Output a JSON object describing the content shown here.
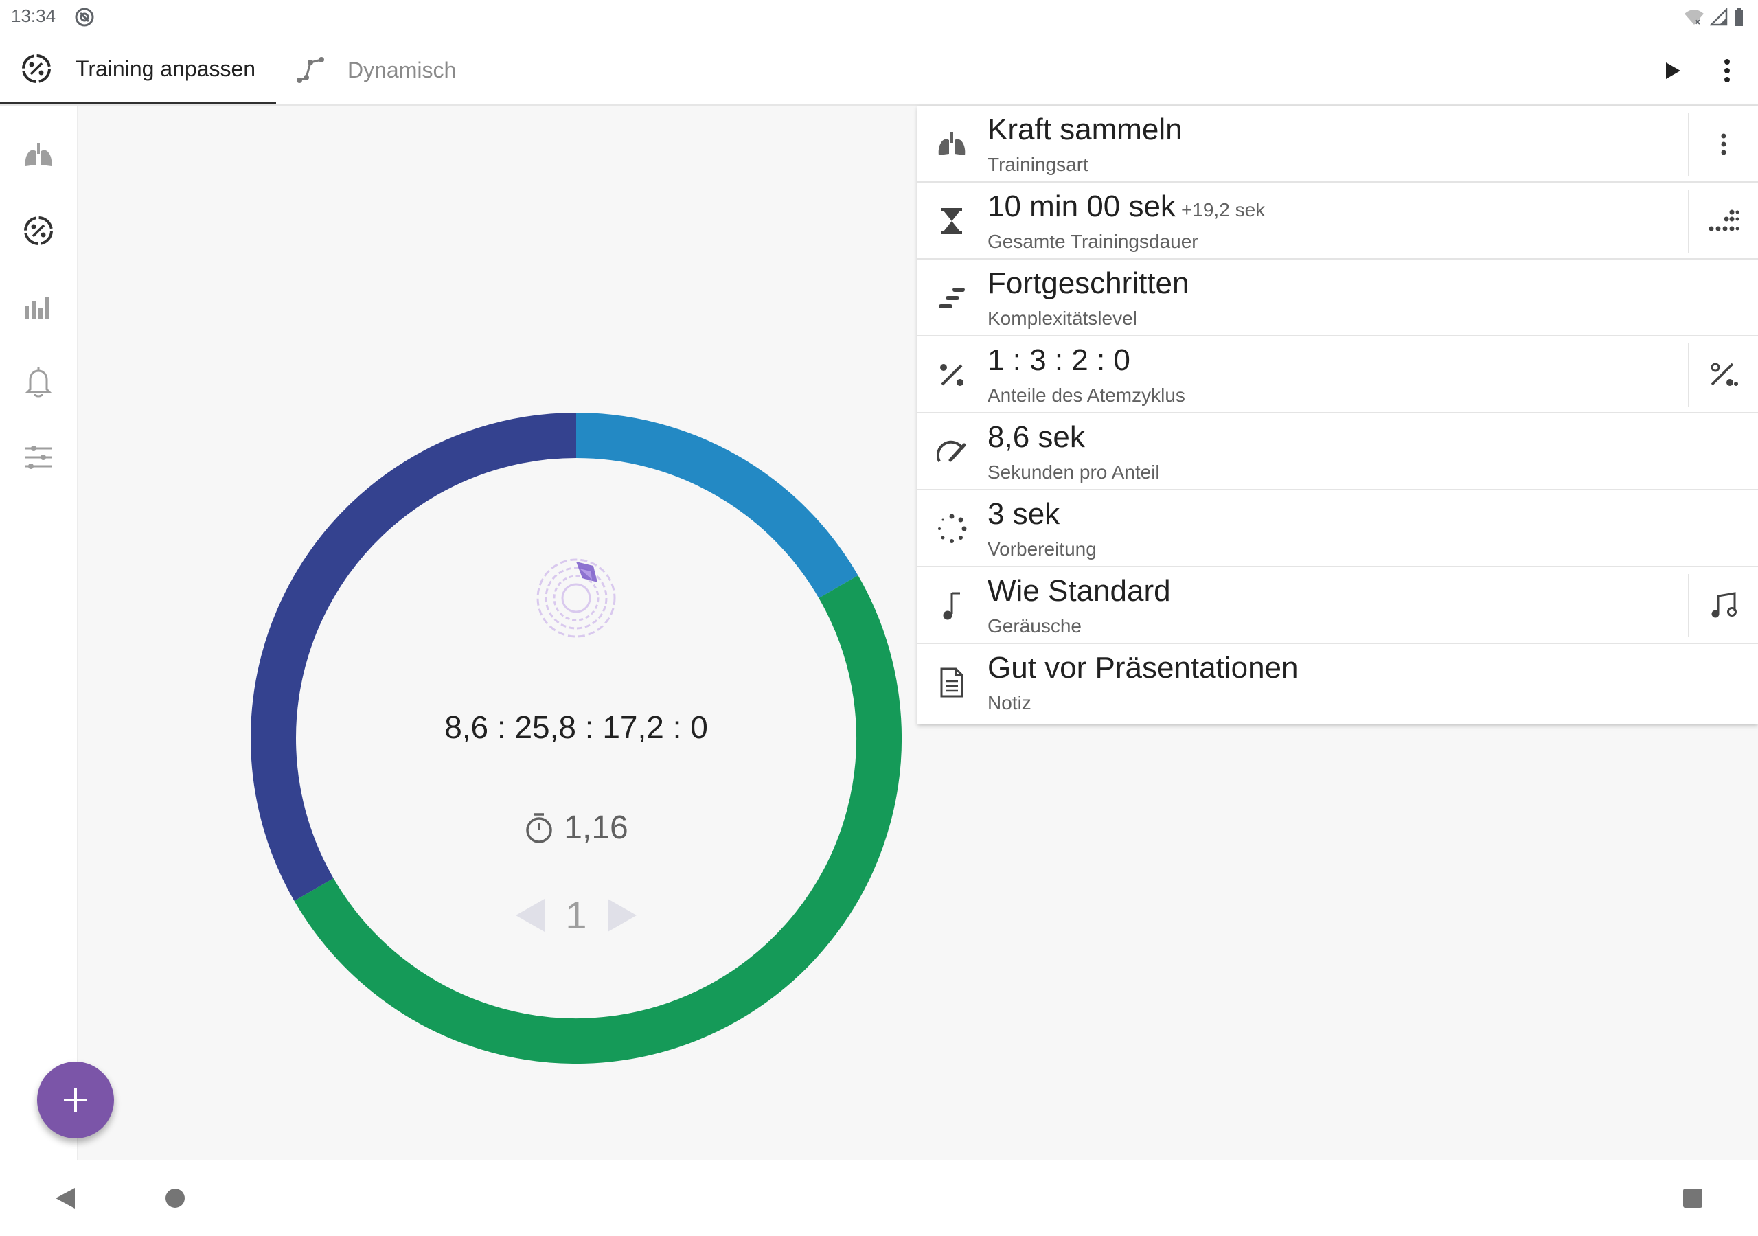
{
  "status_bar": {
    "time": "13:34"
  },
  "tabs": [
    {
      "label": "Training anpassen",
      "icon": "percent-circle-icon",
      "active": true
    },
    {
      "label": "Dynamisch",
      "icon": "graph-points-icon",
      "active": false
    }
  ],
  "toolbar": {
    "play_icon": "play-icon",
    "menu_icon": "more-vert-icon"
  },
  "side_rail": [
    {
      "icon": "lungs-icon"
    },
    {
      "icon": "percent-circle-icon"
    },
    {
      "icon": "bar-chart-icon"
    },
    {
      "icon": "bell-icon"
    },
    {
      "icon": "sliders-icon"
    }
  ],
  "breath_ring": {
    "ratio_text": "8,6 : 25,8 : 17,2 : 0",
    "timer_value": "1,16",
    "cycle_number": "1",
    "segments": [
      {
        "phase": "inhale",
        "seconds": 8.6,
        "color": "#2389c4"
      },
      {
        "phase": "hold",
        "seconds": 25.8,
        "color": "#159a58"
      },
      {
        "phase": "exhale",
        "seconds": 17.2,
        "color": "#34428f"
      },
      {
        "phase": "rest",
        "seconds": 0,
        "color": "#999999"
      }
    ]
  },
  "settings": [
    {
      "title": "Kraft sammeln",
      "subtitle": "Trainingsart",
      "icon": "lungs-icon",
      "action_icon": "more-vert-icon"
    },
    {
      "title": "10 min 00 sek",
      "extra": "+19,2 sek",
      "subtitle": "Gesamte Trainingsdauer",
      "icon": "hourglass-icon",
      "action_icon": "dots-grid-icon"
    },
    {
      "title": "Fortgeschritten",
      "subtitle": "Komplexitätslevel",
      "icon": "stairs-icon"
    },
    {
      "title": "1 : 3 : 2 : 0",
      "subtitle": "Anteile des Atemzyklus",
      "icon": "percent-icon",
      "action_icon": "percent-icon"
    },
    {
      "title": "8,6 sek",
      "subtitle": "Sekunden pro Anteil",
      "icon": "speedometer-icon"
    },
    {
      "title": "3 sek",
      "subtitle": "Vorbereitung",
      "icon": "loading-dots-icon"
    },
    {
      "title": "Wie Standard",
      "subtitle": "Geräusche",
      "icon": "music-note-icon",
      "action_icon": "music-notes-icon"
    },
    {
      "title": "Gut vor Präsentationen",
      "subtitle": "Notiz",
      "icon": "document-icon"
    }
  ],
  "colors": {
    "accent": "#7b55a8",
    "inhale": "#2389c4",
    "hold": "#159a58",
    "exhale": "#34428f"
  }
}
